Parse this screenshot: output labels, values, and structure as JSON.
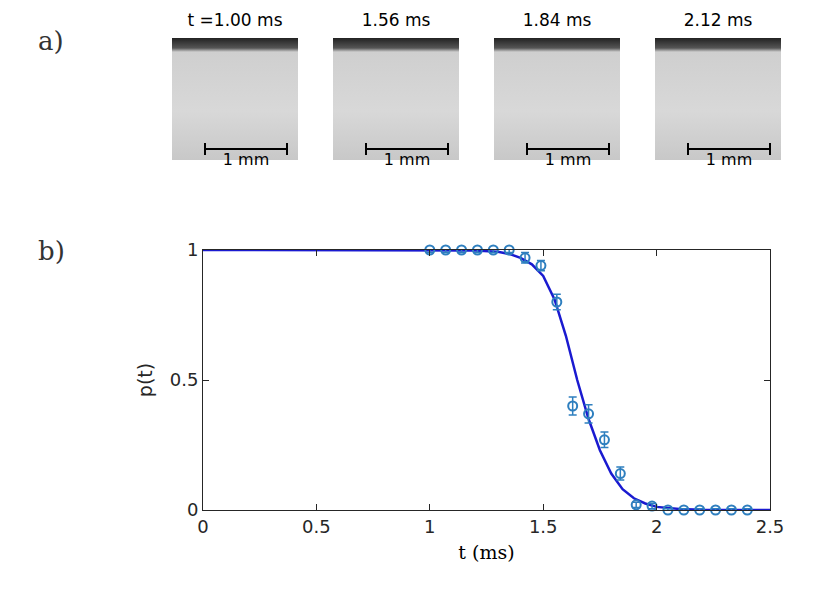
{
  "images": {
    "panel_label": "a)",
    "frames": [
      {
        "title": "t =1.00 ms",
        "scale_label": "1 mm"
      },
      {
        "title": "1.56 ms",
        "scale_label": "1 mm"
      },
      {
        "title": "1.84 ms",
        "scale_label": "1 mm"
      },
      {
        "title": "2.12 ms",
        "scale_label": "1 mm"
      }
    ]
  },
  "chart_data": {
    "type": "scatter",
    "panel_label": "b)",
    "x_label": "t (ms)",
    "y_label": "p(t)",
    "xlim": [
      0,
      2.5
    ],
    "xticks": [
      0,
      0.5,
      1,
      1.5,
      2,
      2.5
    ],
    "ylim": [
      0,
      1
    ],
    "yticks": [
      0,
      0.5,
      1
    ],
    "grid": false,
    "series": [
      {
        "type": "scatter",
        "marker": "circle-open",
        "color": "#2e7fbf",
        "x": [
          1.0,
          1.07,
          1.14,
          1.21,
          1.28,
          1.35,
          1.42,
          1.49,
          1.56,
          1.63,
          1.7,
          1.77,
          1.84,
          1.91,
          1.98,
          2.05,
          2.12,
          2.19,
          2.26,
          2.33,
          2.4
        ],
        "values": [
          1,
          1,
          1,
          1,
          1,
          1,
          0.97,
          0.94,
          0.8,
          0.4,
          0.37,
          0.27,
          0.14,
          0.02,
          0.015,
          0,
          0,
          0,
          0,
          0,
          0
        ],
        "errors": [
          0.01,
          0.01,
          0.01,
          0.01,
          0.01,
          0.01,
          0.02,
          0.02,
          0.03,
          0.035,
          0.035,
          0.03,
          0.025,
          0.01,
          0.01,
          0.005,
          0.005,
          0.005,
          0.005,
          0.005,
          0.005
        ]
      },
      {
        "type": "line",
        "line_style": "solid",
        "color": "#1a1ad0",
        "x": [
          0,
          0.5,
          1.0,
          1.2,
          1.3,
          1.35,
          1.4,
          1.45,
          1.5,
          1.55,
          1.6,
          1.65,
          1.7,
          1.75,
          1.8,
          1.85,
          1.9,
          1.95,
          2.0,
          2.1,
          2.2,
          2.5
        ],
        "values": [
          1,
          1,
          1,
          0.998,
          0.993,
          0.985,
          0.97,
          0.945,
          0.9,
          0.81,
          0.67,
          0.5,
          0.35,
          0.23,
          0.14,
          0.08,
          0.045,
          0.025,
          0.012,
          0.004,
          0.001,
          0
        ]
      }
    ]
  }
}
